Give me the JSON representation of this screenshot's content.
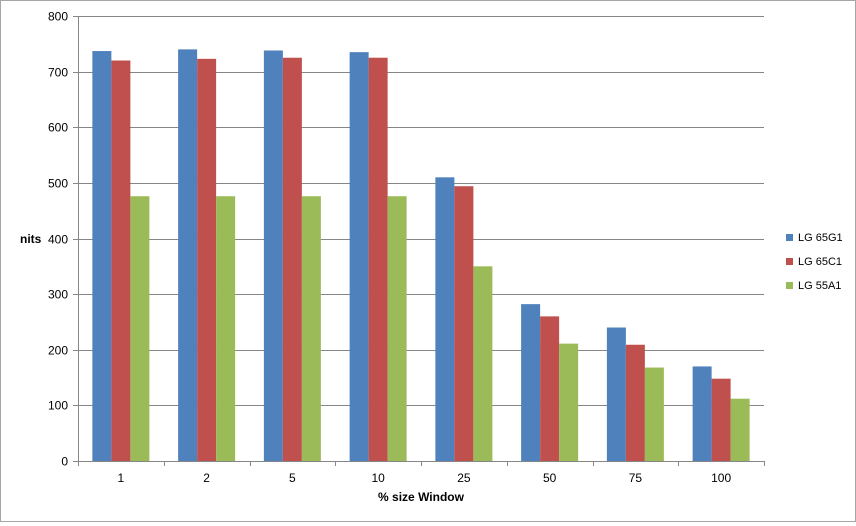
{
  "chart_data": {
    "type": "bar",
    "title": "",
    "xlabel": "% size Window",
    "ylabel": "nits",
    "ylim": [
      0,
      800
    ],
    "yticks": [
      0,
      100,
      200,
      300,
      400,
      500,
      600,
      700,
      800
    ],
    "categories": [
      "1",
      "2",
      "5",
      "10",
      "25",
      "50",
      "75",
      "100"
    ],
    "series": [
      {
        "name": "LG 65G1",
        "color": "#4f81bd",
        "values": [
          737,
          740,
          738,
          735,
          510,
          282,
          240,
          170
        ]
      },
      {
        "name": "LG 65C1",
        "color": "#c0504d",
        "values": [
          720,
          723,
          725,
          725,
          494,
          260,
          209,
          148
        ]
      },
      {
        "name": "LG 55A1",
        "color": "#9bbb59",
        "values": [
          476,
          476,
          476,
          476,
          350,
          211,
          168,
          112
        ]
      }
    ],
    "grid": true,
    "legend_position": "right"
  }
}
